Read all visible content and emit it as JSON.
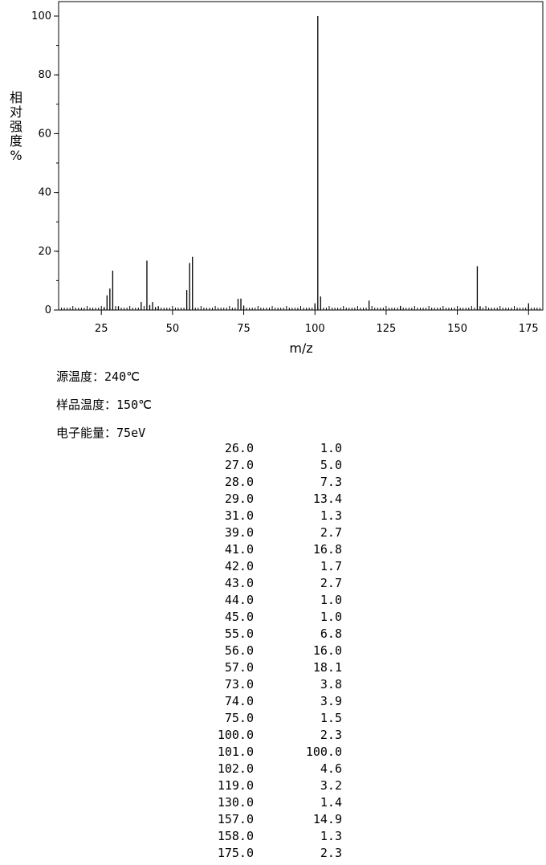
{
  "chart_data": {
    "type": "bar",
    "xlabel": "m/z",
    "ylabel": "相对强度%",
    "xlim": [
      10,
      180
    ],
    "ylim": [
      0,
      100
    ],
    "x_ticks": [
      25,
      50,
      75,
      100,
      125,
      150,
      175
    ],
    "y_ticks": [
      0,
      20,
      40,
      60,
      80,
      100
    ],
    "x": [
      26,
      27,
      28,
      29,
      31,
      39,
      41,
      42,
      43,
      44,
      45,
      55,
      56,
      57,
      73,
      74,
      75,
      100,
      101,
      102,
      119,
      130,
      157,
      158,
      175
    ],
    "values": [
      1.0,
      5.0,
      7.3,
      13.4,
      1.3,
      2.7,
      16.8,
      1.7,
      2.7,
      1.0,
      1.0,
      6.8,
      16.0,
      18.1,
      3.8,
      3.9,
      1.5,
      2.3,
      100.0,
      4.6,
      3.2,
      1.4,
      14.9,
      1.3,
      2.3
    ],
    "grid": false
  },
  "conditions": {
    "source_temp_label": "源温度：",
    "source_temp_value": "240℃",
    "sample_temp_label": "样品温度：",
    "sample_temp_value": "150℃",
    "electron_energy_label": "电子能量：",
    "electron_energy_value": "75eV"
  },
  "peaks": [
    {
      "mz": "26.0",
      "intensity": "1.0"
    },
    {
      "mz": "27.0",
      "intensity": "5.0"
    },
    {
      "mz": "28.0",
      "intensity": "7.3"
    },
    {
      "mz": "29.0",
      "intensity": "13.4"
    },
    {
      "mz": "31.0",
      "intensity": "1.3"
    },
    {
      "mz": "39.0",
      "intensity": "2.7"
    },
    {
      "mz": "41.0",
      "intensity": "16.8"
    },
    {
      "mz": "42.0",
      "intensity": "1.7"
    },
    {
      "mz": "43.0",
      "intensity": "2.7"
    },
    {
      "mz": "44.0",
      "intensity": "1.0"
    },
    {
      "mz": "45.0",
      "intensity": "1.0"
    },
    {
      "mz": "55.0",
      "intensity": "6.8"
    },
    {
      "mz": "56.0",
      "intensity": "16.0"
    },
    {
      "mz": "57.0",
      "intensity": "18.1"
    },
    {
      "mz": "73.0",
      "intensity": "3.8"
    },
    {
      "mz": "74.0",
      "intensity": "3.9"
    },
    {
      "mz": "75.0",
      "intensity": "1.5"
    },
    {
      "mz": "100.0",
      "intensity": "2.3"
    },
    {
      "mz": "101.0",
      "intensity": "100.0"
    },
    {
      "mz": "102.0",
      "intensity": "4.6"
    },
    {
      "mz": "119.0",
      "intensity": "3.2"
    },
    {
      "mz": "130.0",
      "intensity": "1.4"
    },
    {
      "mz": "157.0",
      "intensity": "14.9"
    },
    {
      "mz": "158.0",
      "intensity": "1.3"
    },
    {
      "mz": "175.0",
      "intensity": "2.3"
    }
  ]
}
